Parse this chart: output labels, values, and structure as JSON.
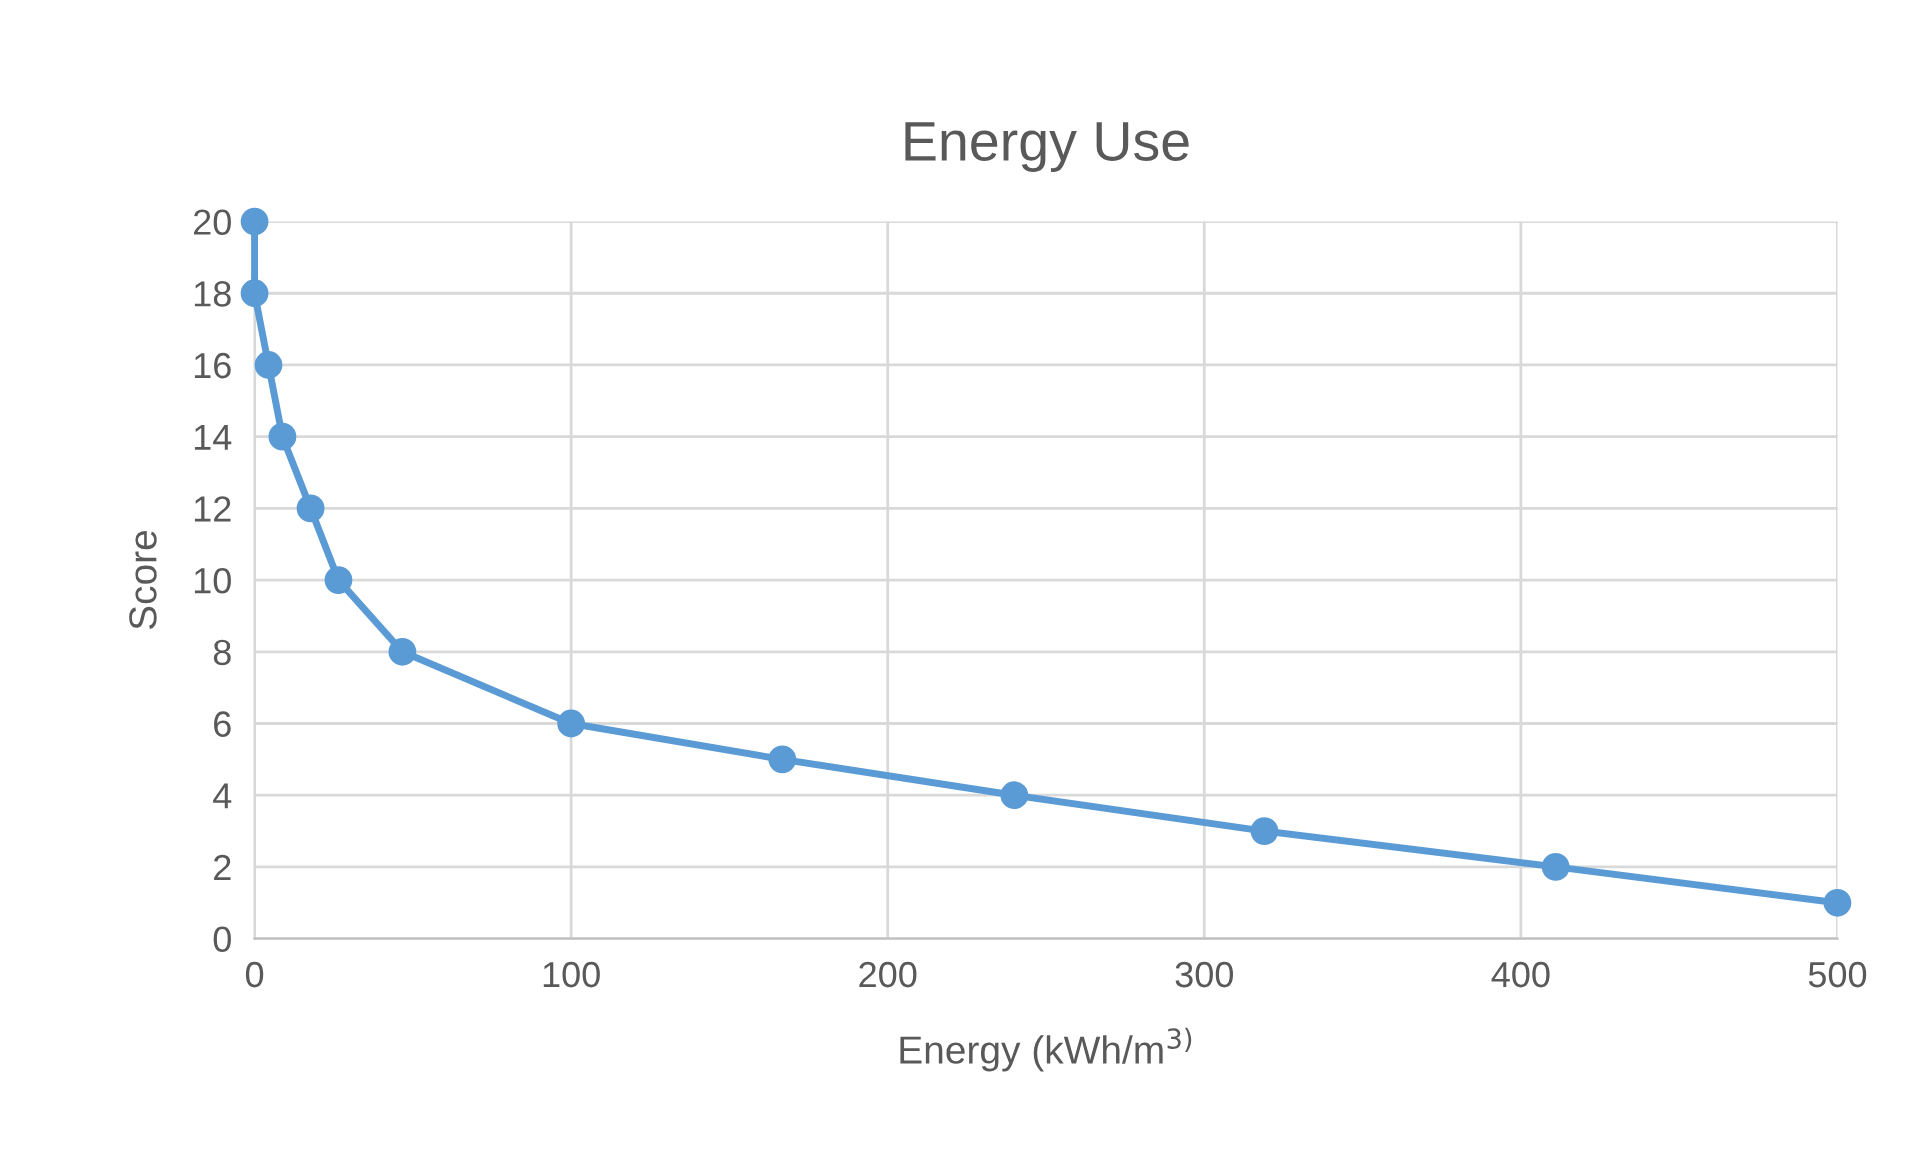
{
  "chart_data": {
    "type": "line",
    "title": "Energy Use",
    "xlabel": "Energy (kWh/m$^{3)}$",
    "ylabel": "Score",
    "x": [
      0,
      0,
      4.4,
      8.8,
      17.7,
      26.5,
      46.7,
      100,
      166.7,
      240,
      319,
      411,
      500
    ],
    "series": [
      {
        "color": "#5b9bd5",
        "values": [
          20,
          18,
          16,
          14,
          12,
          10,
          8,
          6,
          5,
          4,
          3,
          2,
          1
        ]
      }
    ],
    "xlim": [
      0,
      500
    ],
    "xticks": [
      0,
      100,
      200,
      300,
      400,
      500
    ],
    "ylim": [
      0,
      20
    ],
    "yticks": [
      0,
      2,
      4,
      6,
      8,
      10,
      12,
      14,
      16,
      18,
      20
    ],
    "grid": true,
    "marker": "circle",
    "line_style": "solid",
    "legend": false
  }
}
